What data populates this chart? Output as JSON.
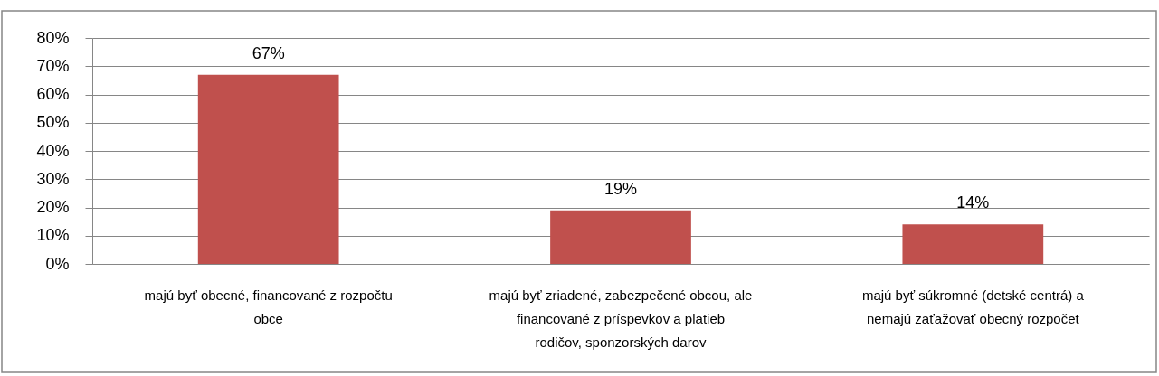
{
  "chart_data": {
    "type": "bar",
    "categories": [
      "majú byť obecné, financované z rozpočtu obce",
      "majú byť zriadené, zabezpečené obcou, ale financované z príspevkov a platieb rodičov, sponzorských darov",
      "majú byť súkromné (detské centrá) a nemajú zaťažovať obecný rozpočet"
    ],
    "values": [
      67,
      19,
      14
    ],
    "color": "#c0504d",
    "value_labels": [
      "67%",
      "19%",
      "14%"
    ],
    "ylim": [
      0,
      80
    ],
    "yticks": [
      {
        "value": 0,
        "label": "0%"
      },
      {
        "value": 10,
        "label": "10%"
      },
      {
        "value": 20,
        "label": "20%"
      },
      {
        "value": 30,
        "label": "30%"
      },
      {
        "value": 40,
        "label": "40%"
      },
      {
        "value": 50,
        "label": "50%"
      },
      {
        "value": 60,
        "label": "60%"
      },
      {
        "value": 70,
        "label": "70%"
      },
      {
        "value": 80,
        "label": "80%"
      }
    ],
    "grid": "y"
  }
}
